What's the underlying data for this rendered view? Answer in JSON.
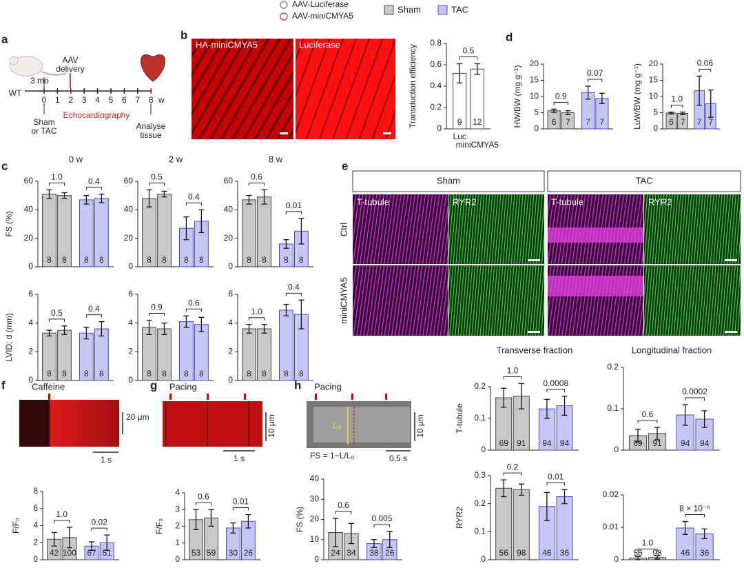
{
  "legend": {
    "items": [
      {
        "name": "AAV-Luciferase",
        "color": "#8c8c8c"
      },
      {
        "name": "AAV-miniCMYA5",
        "color": "#e04848"
      },
      {
        "name": "Sham",
        "color": "#c8c8c8"
      },
      {
        "name": "TAC",
        "color": "#c6c6f6"
      }
    ]
  },
  "panel_labels": [
    "a",
    "b",
    "c",
    "d",
    "e",
    "f",
    "g",
    "h"
  ],
  "schematic": {
    "age": "3 mo",
    "aav": "AAV",
    "delivery": "delivery",
    "wt": "WT",
    "weeks": [
      0,
      1,
      2,
      3,
      4,
      5,
      6,
      7,
      8
    ],
    "unit": "w",
    "sham": "Sham",
    "or_tac": "or TAC",
    "echo": "Echocardiography",
    "analyse": "Analyse",
    "tissue": "tissue"
  },
  "images": {
    "b": [
      "HA-miniCMYA5",
      "Luciferase"
    ],
    "e_columns": [
      "Sham",
      "TAC"
    ],
    "e_rows": [
      "Ctrl",
      "miniCMYA5"
    ],
    "e_channels": [
      "T-tubule",
      "RYR2",
      "T-tubule",
      "RYR2"
    ]
  },
  "traces": {
    "f": {
      "title": "Caffeine",
      "y_scale": "20 μm",
      "x_scale": "1 s"
    },
    "g": {
      "title": "Pacing",
      "y_scale": "10 μm",
      "x_scale": "1 s"
    },
    "h": {
      "title": "Pacing",
      "y_scale": "10 μm",
      "x_scale": "0.5 s",
      "length": "L₀",
      "formula": "FS = 1−L/L₀"
    }
  },
  "chart_data": [
    {
      "type": "bar",
      "ylabel": "Transduction efficiency",
      "categories": [
        "Luc",
        "miniCMYA5"
      ],
      "values": [
        0.52,
        0.56
      ],
      "errors": [
        0.09,
        0.05
      ],
      "n": [
        9,
        12
      ],
      "comparisons": [
        "0.5"
      ],
      "colors": [
        "#ffffff",
        "#ffffff"
      ],
      "ylim": [
        0,
        0.8
      ],
      "yticks": [
        0,
        0.2,
        0.4,
        0.6,
        0.8
      ]
    },
    {
      "type": "bar",
      "ylabel": "HW/BW (mg g⁻¹)",
      "values": [
        5.6,
        5.0,
        11.2,
        9.4
      ],
      "errors": [
        0.5,
        0.6,
        2.0,
        1.6
      ],
      "n": [
        6,
        7,
        7,
        7
      ],
      "comparisons": [
        "0.9",
        "0.07"
      ],
      "colors": [
        "#c8c8c8",
        "#c8c8c8",
        "#c6c6f6",
        "#c6c6f6"
      ],
      "ylim": [
        0,
        20
      ],
      "yticks": [
        0,
        5,
        10,
        15,
        20
      ]
    },
    {
      "type": "bar",
      "ylabel": "LuW/BW (mg g⁻¹)",
      "values": [
        4.9,
        4.8,
        11.8,
        7.8
      ],
      "errors": [
        0.3,
        0.4,
        4.5,
        4.2
      ],
      "n": [
        6,
        7,
        7,
        7
      ],
      "comparisons": [
        "1.0",
        "0.06"
      ],
      "colors": [
        "#c8c8c8",
        "#c8c8c8",
        "#c6c6f6",
        "#c6c6f6"
      ],
      "ylim": [
        0,
        20
      ],
      "yticks": [
        0,
        5,
        10,
        15,
        20
      ]
    },
    {
      "type": "bar",
      "title": "0 w",
      "ylabel": "FS (%)",
      "values": [
        51,
        50,
        47,
        48
      ],
      "errors": [
        3,
        2,
        3,
        3
      ],
      "n": [
        8,
        8,
        8,
        8
      ],
      "comparisons": [
        "1.0",
        "0.4"
      ],
      "colors": [
        "#c8c8c8",
        "#c8c8c8",
        "#c6c6f6",
        "#c6c6f6"
      ],
      "ylim": [
        0,
        60
      ],
      "yticks": [
        0,
        20,
        40,
        60
      ]
    },
    {
      "type": "bar",
      "title": "2 w",
      "values": [
        48,
        51,
        27,
        32
      ],
      "errors": [
        6,
        2,
        8,
        8
      ],
      "n": [
        8,
        8,
        8,
        8
      ],
      "comparisons": [
        "0.5",
        "0.4"
      ],
      "colors": [
        "#c8c8c8",
        "#c8c8c8",
        "#c6c6f6",
        "#c6c6f6"
      ],
      "ylim": [
        0,
        60
      ],
      "yticks": [
        0,
        20,
        40,
        60
      ]
    },
    {
      "type": "bar",
      "title": "8 w",
      "values": [
        47,
        49,
        16,
        25
      ],
      "errors": [
        3,
        5,
        3,
        9
      ],
      "n": [
        8,
        8,
        8,
        8
      ],
      "comparisons": [
        "0.6",
        "0.01"
      ],
      "colors": [
        "#c8c8c8",
        "#c8c8c8",
        "#c6c6f6",
        "#c6c6f6"
      ],
      "ylim": [
        0,
        60
      ],
      "yticks": [
        0,
        20,
        40,
        60
      ]
    },
    {
      "type": "bar",
      "ylabel": "LVID; d (mm)",
      "values": [
        3.3,
        3.5,
        3.3,
        3.6
      ],
      "errors": [
        0.2,
        0.3,
        0.4,
        0.5
      ],
      "n": [
        8,
        8,
        8,
        8
      ],
      "comparisons": [
        "0.5",
        "0.4"
      ],
      "colors": [
        "#c8c8c8",
        "#c8c8c8",
        "#c6c6f6",
        "#c6c6f6"
      ],
      "ylim": [
        0,
        6
      ],
      "yticks": [
        0,
        2,
        4,
        6
      ]
    },
    {
      "type": "bar",
      "values": [
        3.7,
        3.6,
        4.1,
        3.9
      ],
      "errors": [
        0.5,
        0.4,
        0.4,
        0.5
      ],
      "n": [
        8,
        8,
        8,
        8
      ],
      "comparisons": [
        "0.9",
        "0.6"
      ],
      "colors": [
        "#c8c8c8",
        "#c8c8c8",
        "#c6c6f6",
        "#c6c6f6"
      ],
      "ylim": [
        0,
        6
      ],
      "yticks": [
        0,
        2,
        4,
        6
      ]
    },
    {
      "type": "bar",
      "values": [
        3.6,
        3.6,
        4.9,
        4.6
      ],
      "errors": [
        0.3,
        0.3,
        0.4,
        1.0
      ],
      "n": [
        8,
        8,
        8,
        8
      ],
      "comparisons": [
        "1.0",
        "0.4"
      ],
      "colors": [
        "#c8c8c8",
        "#c8c8c8",
        "#c6c6f6",
        "#c6c6f6"
      ],
      "ylim": [
        0,
        6
      ],
      "yticks": [
        0,
        2,
        4,
        6
      ]
    },
    {
      "type": "bar",
      "ylabel": "F/F₀",
      "values": [
        2.4,
        2.6,
        1.6,
        2.0
      ],
      "errors": [
        0.8,
        1.2,
        0.5,
        0.9
      ],
      "n": [
        42,
        100,
        67,
        51
      ],
      "comparisons": [
        "1.0",
        "0.02"
      ],
      "colors": [
        "#c8c8c8",
        "#c8c8c8",
        "#c6c6f6",
        "#c6c6f6"
      ],
      "ylim": [
        0,
        8
      ],
      "yticks": [
        0,
        2,
        4,
        6,
        8
      ]
    },
    {
      "type": "bar",
      "ylabel": "F/F₀",
      "values": [
        2.4,
        2.5,
        1.9,
        2.3
      ],
      "errors": [
        0.6,
        0.5,
        0.3,
        0.4
      ],
      "n": [
        53,
        59,
        30,
        26
      ],
      "comparisons": [
        "0.6",
        "0.01"
      ],
      "colors": [
        "#c8c8c8",
        "#c8c8c8",
        "#c6c6f6",
        "#c6c6f6"
      ],
      "ylim": [
        0,
        4
      ],
      "yticks": [
        0,
        1,
        2,
        3,
        4
      ]
    },
    {
      "type": "bar",
      "ylabel": "FS (%)",
      "values": [
        13.5,
        13,
        8,
        10
      ],
      "errors": [
        7,
        5,
        2,
        4
      ],
      "n": [
        24,
        34,
        38,
        26
      ],
      "comparisons": [
        "0.6",
        "0.005"
      ],
      "colors": [
        "#c8c8c8",
        "#c8c8c8",
        "#c6c6f6",
        "#c6c6f6"
      ],
      "ylim": [
        0,
        40
      ],
      "yticks": [
        0,
        10,
        20,
        30,
        40
      ]
    },
    {
      "type": "bar",
      "title": "Transverse fraction",
      "ylabel": "T-tubule",
      "values": [
        0.165,
        0.17,
        0.13,
        0.14
      ],
      "errors": [
        0.03,
        0.04,
        0.03,
        0.03
      ],
      "n": [
        69,
        91,
        94,
        94
      ],
      "comparisons": [
        "1.0",
        "0.0008"
      ],
      "colors": [
        "#c8c8c8",
        "#c8c8c8",
        "#c6c6f6",
        "#c6c6f6"
      ],
      "ylim": [
        0,
        0.2
      ],
      "yticks": [
        0,
        0.1,
        0.2
      ]
    },
    {
      "type": "bar",
      "title": "Longitudinal fraction",
      "values": [
        0.035,
        0.04,
        0.085,
        0.075
      ],
      "errors": [
        0.015,
        0.015,
        0.025,
        0.02
      ],
      "n": [
        69,
        91,
        94,
        94
      ],
      "comparisons": [
        "0.6",
        "0.0002"
      ],
      "colors": [
        "#c8c8c8",
        "#c8c8c8",
        "#c6c6f6",
        "#c6c6f6"
      ],
      "ylim": [
        0,
        0.2
      ],
      "yticks": [
        0,
        0.1,
        0.2
      ]
    },
    {
      "type": "bar",
      "ylabel": "RYR2",
      "values": [
        0.255,
        0.25,
        0.19,
        0.225
      ],
      "errors": [
        0.03,
        0.02,
        0.05,
        0.025
      ],
      "n": [
        56,
        98,
        46,
        36
      ],
      "comparisons": [
        "0.2",
        "0.01"
      ],
      "colors": [
        "#c8c8c8",
        "#c8c8c8",
        "#c6c6f6",
        "#c6c6f6"
      ],
      "ylim": [
        0,
        0.3
      ],
      "yticks": [
        0,
        0.1,
        0.2,
        0.3
      ]
    },
    {
      "type": "bar",
      "values": [
        0.0005,
        0.0007,
        0.0098,
        0.008
      ],
      "errors": [
        0.0005,
        0.0005,
        0.002,
        0.0015
      ],
      "n": [
        56,
        98,
        46,
        36
      ],
      "comparisons": [
        "1.0",
        "8 × 10⁻⁶"
      ],
      "colors": [
        "#c8c8c8",
        "#c8c8c8",
        "#c6c6f6",
        "#c6c6f6"
      ],
      "ylim": [
        0,
        0.02
      ],
      "yticks": [
        0,
        0.01,
        0.02
      ]
    }
  ]
}
